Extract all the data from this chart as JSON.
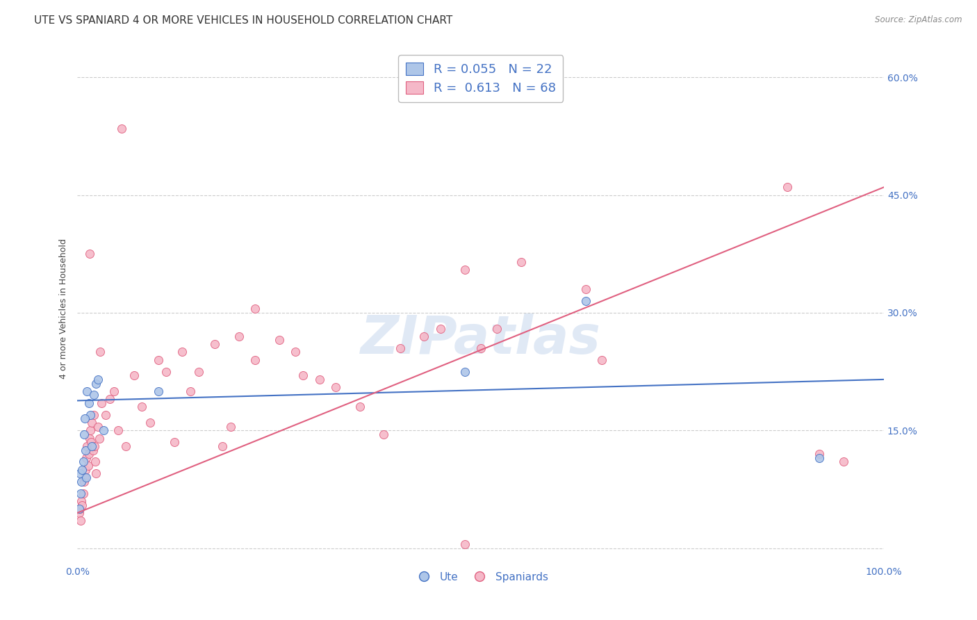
{
  "title": "UTE VS SPANIARD 4 OR MORE VEHICLES IN HOUSEHOLD CORRELATION CHART",
  "source": "Source: ZipAtlas.com",
  "ylabel": "4 or more Vehicles in Household",
  "ytick_values": [
    0,
    15,
    30,
    45,
    60
  ],
  "xlim": [
    0,
    100
  ],
  "ylim": [
    -2,
    63
  ],
  "watermark": "ZIPatlas",
  "legend_ute_R": "0.055",
  "legend_ute_N": "22",
  "legend_spaniard_R": "0.613",
  "legend_spaniard_N": "68",
  "ute_color": "#aec6e8",
  "spaniard_color": "#f5b8c8",
  "ute_line_color": "#4472c4",
  "spaniard_line_color": "#e06080",
  "ute_line_y0": 18.8,
  "ute_line_y1": 21.5,
  "spaniard_line_y0": 4.5,
  "spaniard_line_y1": 46.0,
  "ute_scatter_x": [
    0.3,
    0.5,
    0.7,
    0.8,
    1.0,
    1.2,
    1.4,
    1.6,
    1.8,
    2.0,
    2.3,
    0.4,
    0.6,
    0.9,
    1.1,
    10.0,
    48.0,
    63.0,
    92.0,
    3.2,
    0.2,
    2.5
  ],
  "ute_scatter_y": [
    9.5,
    8.5,
    11.0,
    14.5,
    12.5,
    20.0,
    18.5,
    17.0,
    13.0,
    19.5,
    21.0,
    7.0,
    10.0,
    16.5,
    9.0,
    20.0,
    22.5,
    31.5,
    11.5,
    15.0,
    5.0,
    21.5
  ],
  "spaniard_scatter_x": [
    0.2,
    0.3,
    0.4,
    0.5,
    0.6,
    0.7,
    0.8,
    0.9,
    1.0,
    1.1,
    1.2,
    1.3,
    1.4,
    1.5,
    1.6,
    1.7,
    1.8,
    1.9,
    2.0,
    2.1,
    2.2,
    2.3,
    2.5,
    2.7,
    3.0,
    3.5,
    4.0,
    4.5,
    5.0,
    6.0,
    7.0,
    8.0,
    9.0,
    10.0,
    11.0,
    12.0,
    13.0,
    14.0,
    15.0,
    17.0,
    18.0,
    19.0,
    20.0,
    22.0,
    25.0,
    27.0,
    28.0,
    30.0,
    32.0,
    35.0,
    38.0,
    40.0,
    43.0,
    45.0,
    48.0,
    50.0,
    52.0,
    55.0,
    63.0,
    65.0,
    88.0,
    92.0,
    95.0,
    48.0,
    22.0,
    2.8,
    1.5,
    5.5
  ],
  "spaniard_scatter_y": [
    4.5,
    5.0,
    3.5,
    6.0,
    5.5,
    7.0,
    8.5,
    9.0,
    10.0,
    11.5,
    13.0,
    10.5,
    12.0,
    14.0,
    15.0,
    13.5,
    16.0,
    12.5,
    17.0,
    13.0,
    11.0,
    9.5,
    15.5,
    14.0,
    18.5,
    17.0,
    19.0,
    20.0,
    15.0,
    13.0,
    22.0,
    18.0,
    16.0,
    24.0,
    22.5,
    13.5,
    25.0,
    20.0,
    22.5,
    26.0,
    13.0,
    15.5,
    27.0,
    24.0,
    26.5,
    25.0,
    22.0,
    21.5,
    20.5,
    18.0,
    14.5,
    25.5,
    27.0,
    28.0,
    35.5,
    25.5,
    28.0,
    36.5,
    33.0,
    24.0,
    46.0,
    12.0,
    11.0,
    0.5,
    30.5,
    25.0,
    37.5,
    53.5
  ],
  "background_color": "#ffffff",
  "grid_color": "#cccccc",
  "title_fontsize": 11,
  "axis_fontsize": 9,
  "tick_fontsize": 10
}
